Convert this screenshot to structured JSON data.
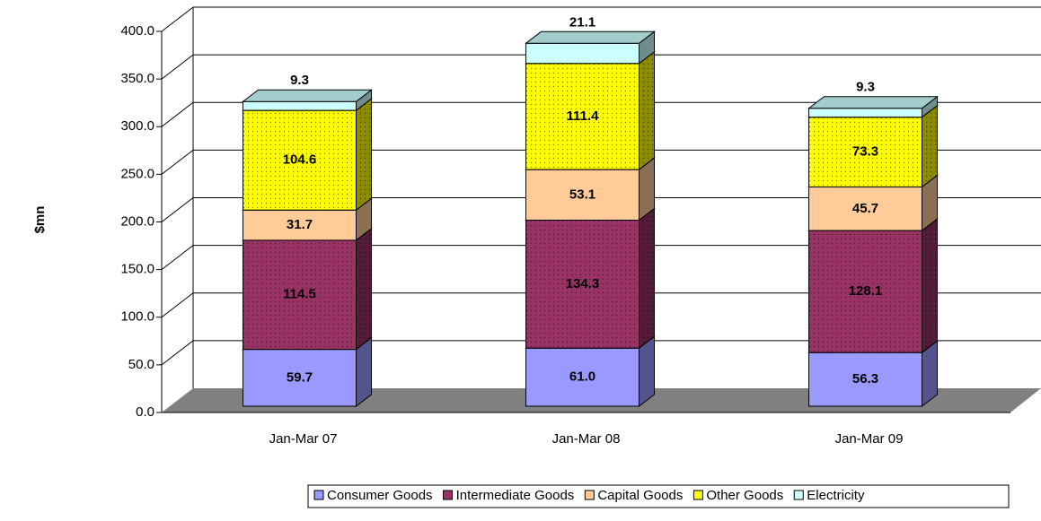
{
  "chart_data": {
    "type": "bar3d_stacked",
    "ylabel": "$mn",
    "categories": [
      "Jan-Mar 07",
      "Jan-Mar 08",
      "Jan-Mar 09"
    ],
    "series": [
      {
        "name": "Consumer Goods",
        "color": "#9999ff",
        "values": [
          59.7,
          61.0,
          56.3
        ],
        "value_labels": [
          "59.7",
          "61.0",
          "56.3"
        ]
      },
      {
        "name": "Intermediate Goods",
        "color": "#993366",
        "pattern": "dotted",
        "values": [
          114.5,
          134.3,
          128.1
        ],
        "value_labels": [
          "114.5",
          "134.3",
          "128.1"
        ]
      },
      {
        "name": "Capital Goods",
        "color": "#ffcc99",
        "values": [
          31.7,
          53.1,
          45.7
        ],
        "value_labels": [
          "31.7",
          "53.1",
          "45.7"
        ]
      },
      {
        "name": "Other Goods",
        "color": "#ffff00",
        "pattern": "dotted",
        "values": [
          104.6,
          111.4,
          73.3
        ],
        "value_labels": [
          "104.6",
          "111.4",
          "73.3"
        ]
      },
      {
        "name": "Electricity",
        "color": "#ccffff",
        "values": [
          9.3,
          21.1,
          9.3
        ],
        "value_labels": [
          "9.3",
          "21.1",
          "9.3"
        ]
      }
    ],
    "ylim": [
      0,
      400
    ],
    "yticks": [
      {
        "value": 0,
        "label": "0.0"
      },
      {
        "value": 50,
        "label": "50.0"
      },
      {
        "value": 100,
        "label": "100.0"
      },
      {
        "value": 150,
        "label": "150.0"
      },
      {
        "value": 200,
        "label": "200.0"
      },
      {
        "value": 250,
        "label": "250.0"
      },
      {
        "value": 300,
        "label": "300.0"
      },
      {
        "value": 350,
        "label": "350.0"
      },
      {
        "value": 400,
        "label": "400.0"
      }
    ],
    "grid": true,
    "legend": "bottom"
  }
}
